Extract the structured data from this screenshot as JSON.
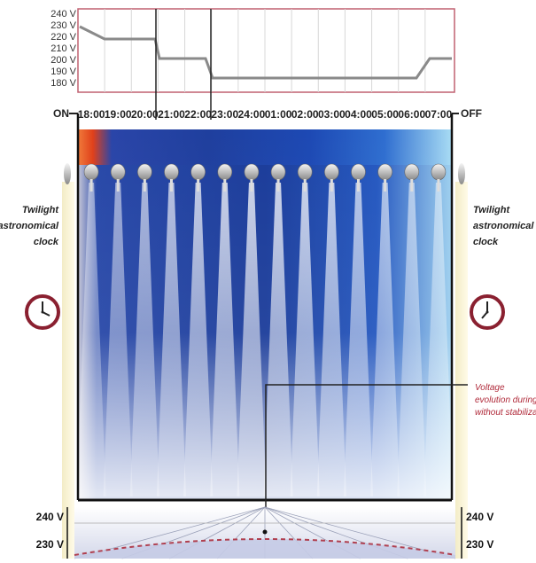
{
  "top_chart": {
    "y_ticks": [
      "240 V",
      "230 V",
      "220 V",
      "210 V",
      "200 V",
      "190 V",
      "180 V"
    ],
    "line_color": "#888888",
    "frame_color": "#c06070"
  },
  "timeline": {
    "on_label": "ON",
    "off_label": "OFF",
    "hours": [
      "18:00",
      "19:00",
      "20:00",
      "21:00",
      "22:00",
      "23:00",
      "24:00",
      "01:00",
      "02:00",
      "03:00",
      "04:00",
      "05:00",
      "06:00",
      "07:00"
    ]
  },
  "left_clock": {
    "line1": "Twilight",
    "line2": "astronomical",
    "line3": "clock",
    "icon": "clock-icon"
  },
  "right_clock": {
    "line1": "Twilight",
    "line2": "astronomical",
    "line3": "clock",
    "icon": "clock-icon"
  },
  "annotation": {
    "line1": "Voltage",
    "line2": "evolution during nigh",
    "line3": "without stabilization"
  },
  "bottom": {
    "left_top": "240 V",
    "left_bottom": "230 V",
    "right_top": "240 V",
    "right_bottom": "230 V",
    "curve_color": "#b04050"
  },
  "colors": {
    "night_blue": "#1a3f9a",
    "dusk_orange": "#e8501a",
    "dawn_light": "#7fc0f0"
  }
}
